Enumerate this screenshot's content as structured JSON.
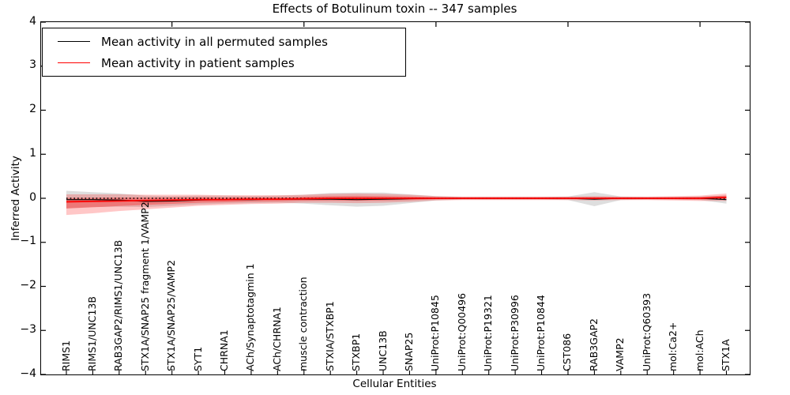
{
  "header": {
    "title": "Effects of Botulinum toxin -- 347 samples"
  },
  "axes": {
    "xlabel": "Cellular Entities",
    "ylabel": "Inferred Activity",
    "yticks": [
      {
        "v": 4,
        "label": "4"
      },
      {
        "v": 3,
        "label": "3"
      },
      {
        "v": 2,
        "label": "2"
      },
      {
        "v": 1,
        "label": "1"
      },
      {
        "v": 0,
        "label": "0"
      },
      {
        "v": -1,
        "label": "−1"
      },
      {
        "v": -2,
        "label": "−2"
      },
      {
        "v": -3,
        "label": "−3"
      },
      {
        "v": -4,
        "label": "−4"
      }
    ]
  },
  "legend": {
    "entries": [
      {
        "label": "Mean activity in all permuted samples",
        "color": "#000000"
      },
      {
        "label": "Mean activity in patient samples",
        "color": "#ff0000"
      }
    ]
  },
  "chart_data": {
    "type": "line",
    "title": "Effects of Botulinum toxin -- 347 samples",
    "xlabel": "Cellular Entities",
    "ylabel": "Inferred Activity",
    "ylim": [
      -4,
      4
    ],
    "grid": false,
    "legend_position": "upper left",
    "zero_reference_line": true,
    "top_tick_indices": [
      4,
      9,
      14,
      19,
      24
    ],
    "categories": [
      "RIMS1",
      "RIMS1/UNC13B",
      "RAB3GAP2/RIMS1/UNC13B",
      "STX1A/SNAP25 fragment 1/VAMP2",
      "STX1A/SNAP25/VAMP2",
      "SYT1",
      "CHRNA1",
      "ACh/Synaptotagmin 1",
      "ACh/CHRNA1",
      "muscle contraction",
      "STXIA/STXBP1",
      "STXBP1",
      "UNC13B",
      "SNAP25",
      "UniProt:P10845",
      "UniProt:Q00496",
      "UniProt:P19321",
      "UniProt:P30996",
      "UniProt:P10844",
      "CST086",
      "RAB3GAP2",
      "VAMP2",
      "UniProt:Q60393",
      "mol:Ca2+",
      "mol:ACh",
      "STX1A"
    ],
    "series": [
      {
        "name": "Mean activity in all permuted samples",
        "color": "#000000",
        "width": 1.2,
        "values": [
          -0.03,
          -0.03,
          -0.04,
          -0.07,
          -0.06,
          -0.04,
          -0.03,
          -0.03,
          -0.02,
          -0.02,
          -0.02,
          -0.03,
          -0.02,
          -0.01,
          0,
          0,
          0,
          0,
          0,
          0,
          -0.02,
          0,
          0,
          0,
          0,
          -0.03
        ]
      },
      {
        "name": "Mean activity in patient samples",
        "color": "#ff0000",
        "width": 1.8,
        "values": [
          -0.08,
          -0.07,
          -0.06,
          -0.05,
          -0.04,
          -0.03,
          -0.03,
          -0.02,
          -0.02,
          -0.01,
          0,
          0,
          0,
          0,
          0,
          0,
          0,
          0,
          0,
          0,
          0,
          0,
          0,
          0,
          0,
          0.02
        ]
      }
    ],
    "bands": [
      {
        "name": "permuted-samples-spread",
        "base": 0,
        "color": "rgba(0,0,0,0.13)",
        "scale": 1,
        "upper": [
          0.2,
          0.17,
          0.15,
          0.13,
          0.11,
          0.1,
          0.09,
          0.08,
          0.08,
          0.1,
          0.14,
          0.16,
          0.15,
          0.1,
          0.05,
          0.03,
          0.03,
          0.03,
          0.03,
          0.04,
          0.16,
          0.04,
          0.03,
          0.03,
          0.04,
          0.09
        ],
        "lower": [
          0.2,
          0.17,
          0.15,
          0.13,
          0.11,
          0.1,
          0.09,
          0.08,
          0.08,
          0.1,
          0.14,
          0.16,
          0.15,
          0.1,
          0.05,
          0.03,
          0.03,
          0.03,
          0.03,
          0.04,
          0.16,
          0.04,
          0.03,
          0.03,
          0.04,
          0.09
        ]
      },
      {
        "name": "patient-samples-spread-outer",
        "base": 1,
        "color": "rgba(255,0,0,0.22)",
        "scale": 1,
        "upper": [
          0.17,
          0.16,
          0.15,
          0.13,
          0.12,
          0.11,
          0.1,
          0.09,
          0.09,
          0.09,
          0.1,
          0.11,
          0.1,
          0.08,
          0.05,
          0.04,
          0.04,
          0.04,
          0.04,
          0.04,
          0.05,
          0.04,
          0.04,
          0.05,
          0.06,
          0.09
        ],
        "lower": [
          0.3,
          0.27,
          0.23,
          0.2,
          0.17,
          0.14,
          0.12,
          0.11,
          0.1,
          0.09,
          0.1,
          0.11,
          0.1,
          0.08,
          0.05,
          0.04,
          0.04,
          0.04,
          0.04,
          0.04,
          0.05,
          0.04,
          0.04,
          0.05,
          0.06,
          0.08
        ]
      },
      {
        "name": "patient-samples-spread-inner",
        "base": 1,
        "color": "rgba(255,0,0,0.30)",
        "scale": 0.5,
        "upper": [
          0.17,
          0.16,
          0.15,
          0.13,
          0.12,
          0.11,
          0.1,
          0.09,
          0.09,
          0.09,
          0.1,
          0.11,
          0.1,
          0.08,
          0.05,
          0.04,
          0.04,
          0.04,
          0.04,
          0.04,
          0.05,
          0.04,
          0.04,
          0.05,
          0.06,
          0.09
        ],
        "lower": [
          0.3,
          0.27,
          0.23,
          0.2,
          0.17,
          0.14,
          0.12,
          0.11,
          0.1,
          0.09,
          0.1,
          0.11,
          0.1,
          0.08,
          0.05,
          0.04,
          0.04,
          0.04,
          0.04,
          0.04,
          0.05,
          0.04,
          0.04,
          0.05,
          0.06,
          0.08
        ]
      }
    ]
  }
}
